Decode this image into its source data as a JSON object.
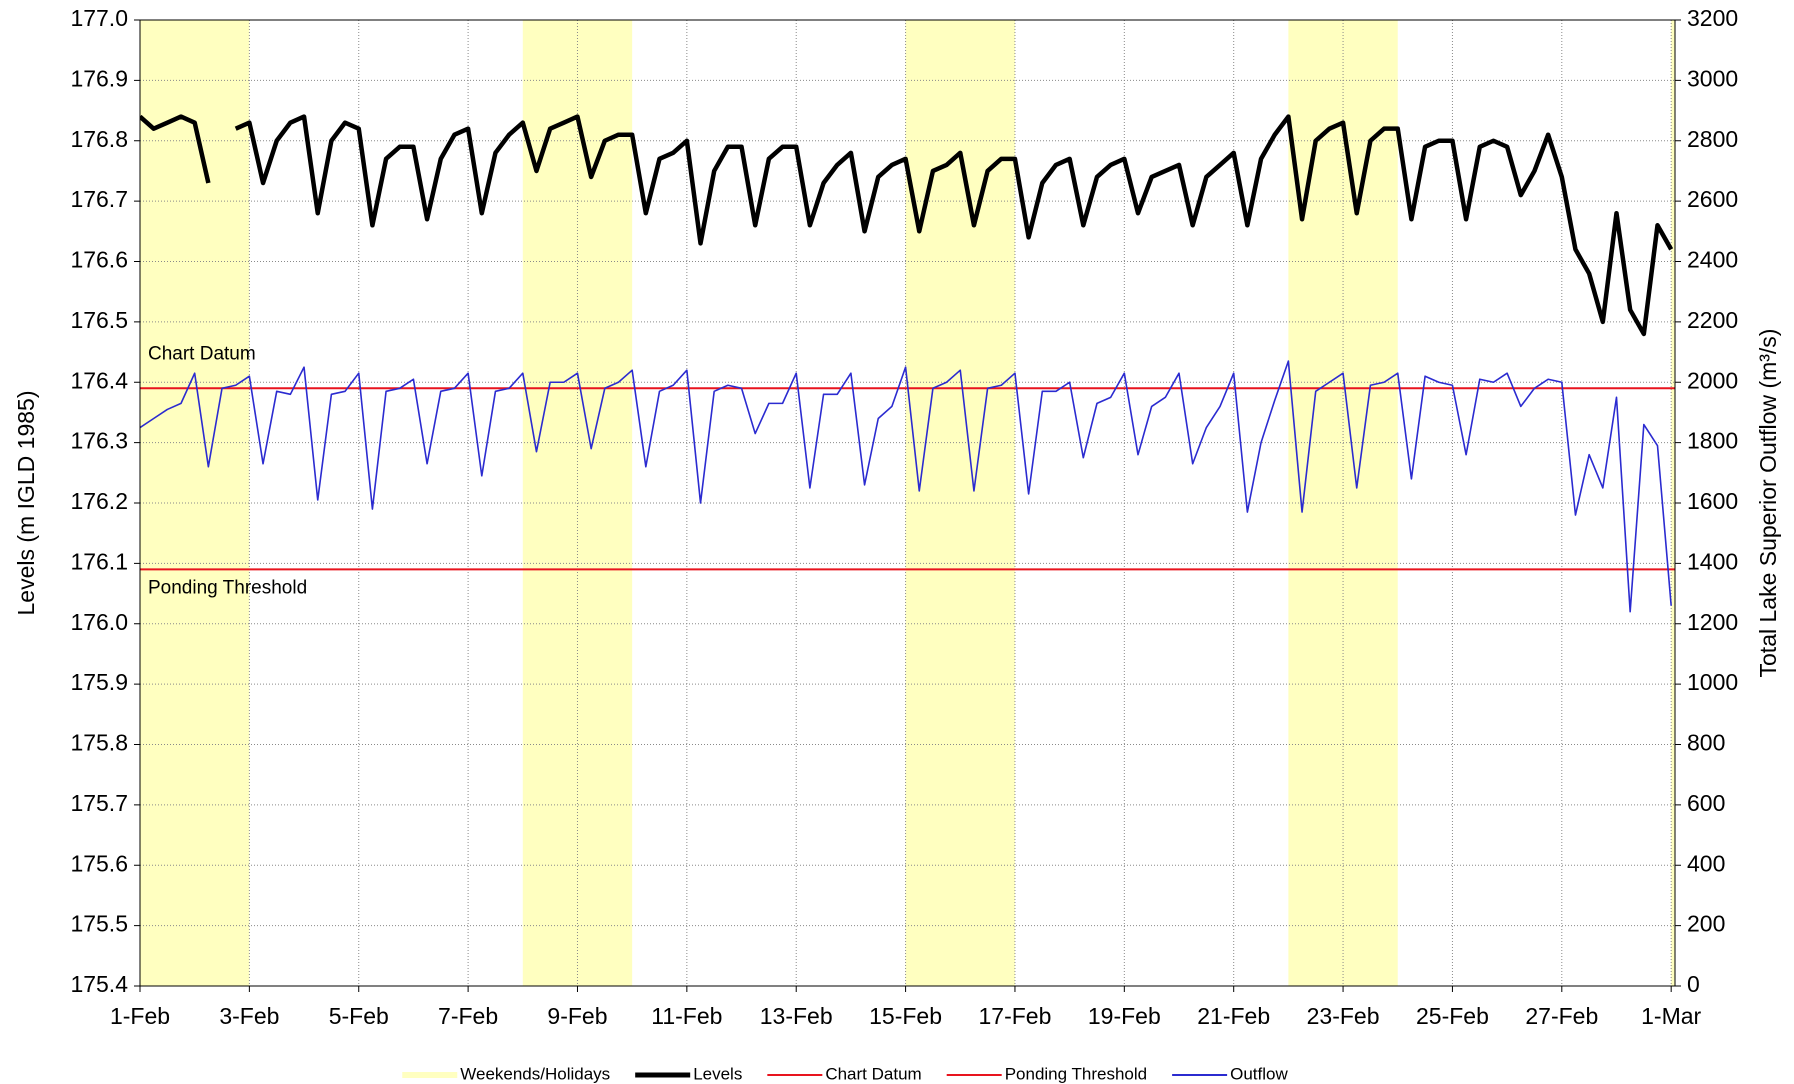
{
  "chart_data": {
    "type": "line",
    "y_label": "Levels (m IGLD 1985)",
    "y2_label": "Total Lake Superior Outflow (m³/s)",
    "xlim": [
      0,
      28.07
    ],
    "xticks": [
      {
        "value": 0,
        "label": "1-Feb"
      },
      {
        "value": 2,
        "label": "3-Feb"
      },
      {
        "value": 4,
        "label": "5-Feb"
      },
      {
        "value": 6,
        "label": "7-Feb"
      },
      {
        "value": 8,
        "label": "9-Feb"
      },
      {
        "value": 10,
        "label": "11-Feb"
      },
      {
        "value": 12,
        "label": "13-Feb"
      },
      {
        "value": 14,
        "label": "15-Feb"
      },
      {
        "value": 16,
        "label": "17-Feb"
      },
      {
        "value": 18,
        "label": "19-Feb"
      },
      {
        "value": 20,
        "label": "21-Feb"
      },
      {
        "value": 22,
        "label": "23-Feb"
      },
      {
        "value": 24,
        "label": "25-Feb"
      },
      {
        "value": 26,
        "label": "27-Feb"
      },
      {
        "value": 28,
        "label": "1-Mar"
      }
    ],
    "ylim": [
      175.4,
      177.0
    ],
    "yticks": [
      175.4,
      175.5,
      175.6,
      175.7,
      175.8,
      175.9,
      {
        "value": 176,
        "label": "176.0"
      },
      176.1,
      176.2,
      176.3,
      176.4,
      176.5,
      176.6,
      176.7,
      176.8,
      176.9,
      {
        "value": 177,
        "label": "177.0"
      }
    ],
    "y2lim": [
      0,
      3200
    ],
    "y2ticks": [
      0,
      200,
      400,
      600,
      800,
      1000,
      1200,
      1400,
      1600,
      1800,
      2000,
      2200,
      2400,
      2600,
      2800,
      3000,
      3200
    ],
    "grid": true,
    "legend": "bottom",
    "bands": {
      "name": "Weekends/Holidays",
      "color": "#ffffc0",
      "ranges": [
        [
          0,
          2
        ],
        [
          7,
          9
        ],
        [
          14,
          16
        ],
        [
          21,
          23
        ],
        [
          28,
          29
        ]
      ]
    },
    "reference_lines": [
      {
        "name": "Chart Datum",
        "value": 176.39,
        "color": "#e8141e"
      },
      {
        "name": "Ponding Threshold",
        "value": 176.09,
        "color": "#e8141e"
      }
    ],
    "x": [
      0,
      0.25,
      0.5,
      0.75,
      1,
      1.25,
      1.5,
      1.75,
      2,
      2.25,
      2.5,
      2.75,
      3,
      3.25,
      3.5,
      3.75,
      4,
      4.25,
      4.5,
      4.75,
      5,
      5.25,
      5.5,
      5.75,
      6,
      6.25,
      6.5,
      6.75,
      7,
      7.25,
      7.5,
      7.75,
      8,
      8.25,
      8.5,
      8.75,
      9,
      9.25,
      9.5,
      9.75,
      10,
      10.25,
      10.5,
      10.75,
      11,
      11.25,
      11.5,
      11.75,
      12,
      12.25,
      12.5,
      12.75,
      13,
      13.25,
      13.5,
      13.75,
      14,
      14.25,
      14.5,
      14.75,
      15,
      15.25,
      15.5,
      15.75,
      16,
      16.25,
      16.5,
      16.75,
      17,
      17.25,
      17.5,
      17.75,
      18,
      18.25,
      18.5,
      18.75,
      19,
      19.25,
      19.5,
      19.75,
      20,
      20.25,
      20.5,
      20.75,
      21,
      21.25,
      21.5,
      21.75,
      22,
      22.25,
      22.5,
      22.75,
      23,
      23.25,
      23.5,
      23.75,
      24,
      24.25,
      24.5,
      24.75,
      25,
      25.25,
      25.5,
      25.75,
      26,
      26.25,
      26.5,
      26.75,
      27,
      27.25,
      27.5,
      27.75,
      28
    ],
    "series": [
      {
        "name": "Levels",
        "color": "#000000",
        "axis": "y",
        "values": [
          176.84,
          176.82,
          176.83,
          176.84,
          176.83,
          176.73,
          null,
          176.82,
          176.83,
          176.73,
          176.8,
          176.83,
          176.84,
          176.68,
          176.8,
          176.83,
          176.82,
          176.66,
          176.77,
          176.79,
          176.79,
          176.67,
          176.77,
          176.81,
          176.82,
          176.68,
          176.78,
          176.81,
          176.83,
          176.75,
          176.82,
          176.83,
          176.84,
          176.74,
          176.8,
          176.81,
          176.81,
          176.68,
          176.77,
          176.78,
          176.8,
          176.63,
          176.75,
          176.79,
          176.79,
          176.66,
          176.77,
          176.79,
          176.79,
          176.66,
          176.73,
          176.76,
          176.78,
          176.65,
          176.74,
          176.76,
          176.77,
          176.65,
          176.75,
          176.76,
          176.78,
          176.66,
          176.75,
          176.77,
          176.77,
          176.64,
          176.73,
          176.76,
          176.77,
          176.66,
          176.74,
          176.76,
          176.77,
          176.68,
          176.74,
          176.75,
          176.76,
          176.66,
          176.74,
          176.76,
          176.78,
          176.66,
          176.77,
          176.81,
          176.84,
          176.67,
          176.8,
          176.82,
          176.83,
          176.68,
          176.8,
          176.82,
          176.82,
          176.67,
          176.79,
          176.8,
          176.8,
          176.67,
          176.79,
          176.8,
          176.79,
          176.71,
          176.75,
          176.81,
          176.74,
          176.62,
          176.58,
          176.5,
          176.68,
          176.52,
          176.48,
          176.66,
          176.62
        ]
      },
      {
        "name": "Outflow",
        "color": "#2b2bd0",
        "axis": "y2",
        "values": [
          1850,
          1880,
          1910,
          1930,
          2030,
          1720,
          1980,
          1990,
          2020,
          1730,
          1970,
          1960,
          2050,
          1610,
          1960,
          1970,
          2030,
          1580,
          1970,
          1980,
          2010,
          1730,
          1970,
          1980,
          2030,
          1690,
          1970,
          1980,
          2030,
          1770,
          2000,
          2000,
          2030,
          1780,
          1980,
          2000,
          2040,
          1720,
          1970,
          1990,
          2040,
          1600,
          1970,
          1990,
          1980,
          1830,
          1930,
          1930,
          2030,
          1650,
          1960,
          1960,
          2030,
          1660,
          1880,
          1920,
          2050,
          1640,
          1980,
          2000,
          2040,
          1640,
          1980,
          1990,
          2030,
          1630,
          1970,
          1970,
          2000,
          1750,
          1930,
          1950,
          2030,
          1760,
          1920,
          1950,
          2030,
          1730,
          1850,
          1920,
          2030,
          1570,
          1800,
          1940,
          2070,
          1570,
          1970,
          2000,
          2030,
          1650,
          1990,
          2000,
          2030,
          1680,
          2020,
          2000,
          1990,
          1760,
          2010,
          2000,
          2030,
          1920,
          1980,
          2010,
          2000,
          1560,
          1760,
          1650,
          1950,
          1240,
          1860,
          1790,
          1260
        ]
      }
    ]
  }
}
